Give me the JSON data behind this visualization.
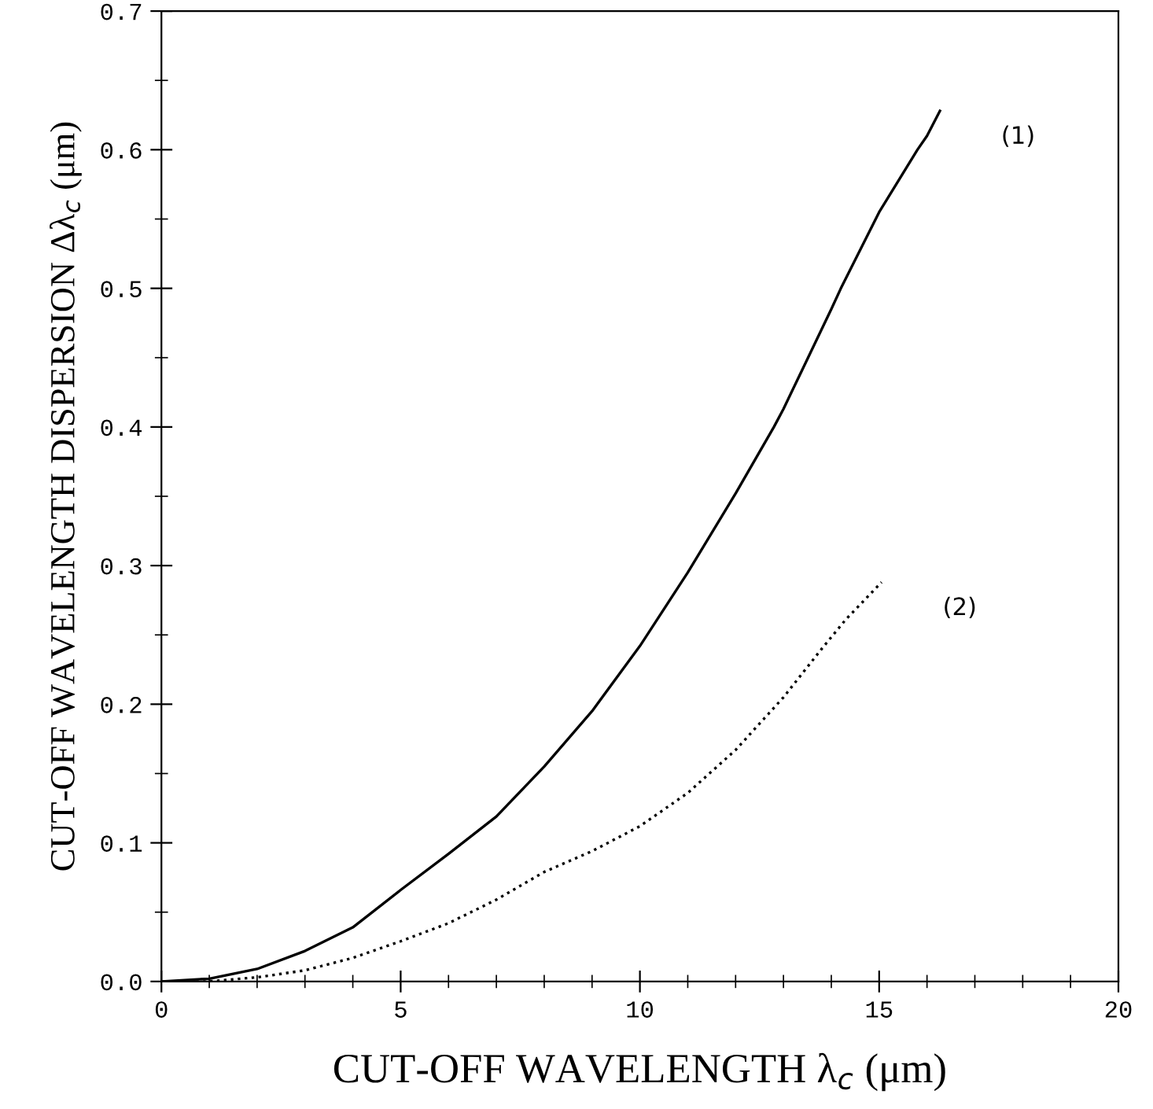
{
  "chart_data": {
    "type": "line",
    "xlabel": "CUT-OFF WAVELENGTH λ$_{c}$ (μm)",
    "ylabel": "CUT-OFF WAVELENGTH DISPERSION Δλ$_{c}$ (μm)",
    "series": [
      {
        "name": "(1)",
        "color": "#000000",
        "line_style": "solid",
        "x": [
          0,
          1,
          2,
          3,
          4,
          5,
          6,
          7,
          8,
          9,
          10,
          11,
          12,
          12.8,
          13,
          14,
          14.2,
          15,
          15.8,
          16,
          16.27
        ],
        "values": [
          0,
          0.002,
          0.009,
          0.022,
          0.039,
          0.066,
          0.092,
          0.119,
          0.155,
          0.195,
          0.242,
          0.295,
          0.352,
          0.4,
          0.413,
          0.485,
          0.5,
          0.555,
          0.6,
          0.61,
          0.628
        ]
      },
      {
        "name": "(2)",
        "color": "#000000",
        "line_style": "dotted",
        "x": [
          0,
          1,
          2,
          3,
          4,
          5,
          6,
          7,
          8,
          9,
          10,
          11,
          12,
          13,
          13.8,
          14.3,
          15.05
        ],
        "values": [
          0,
          0,
          0.003,
          0.008,
          0.017,
          0.029,
          0.042,
          0.059,
          0.079,
          0.094,
          0.112,
          0.136,
          0.167,
          0.205,
          0.24,
          0.261,
          0.288
        ]
      }
    ],
    "xlim": [
      0,
      20
    ],
    "xticks": [
      0,
      5,
      10,
      15,
      20
    ],
    "ylim": [
      0,
      0.7
    ],
    "yticks": [
      {
        "value": 0,
        "label": "0.0"
      },
      0.1,
      0.2,
      0.3,
      0.4,
      0.5,
      0.6,
      0.7
    ],
    "grid": false,
    "legend": false
  }
}
